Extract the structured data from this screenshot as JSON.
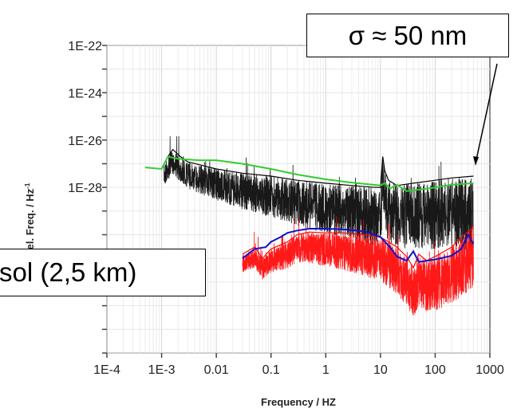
{
  "chart_data": {
    "type": "line",
    "xlabel": "Frequency / HZ",
    "ylabel_fragment": "of rel. Freq. / Hz",
    "ylabel_superscript": "-1",
    "x_scale": "log",
    "y_scale": "log",
    "xlim": [
      0.0001,
      1000
    ],
    "ylim": [
      1e-35,
      1e-22
    ],
    "x_ticks": [
      {
        "value": 0.0001,
        "label": "1E-4"
      },
      {
        "value": 0.001,
        "label": "1E-3"
      },
      {
        "value": 0.01,
        "label": "0.01"
      },
      {
        "value": 0.1,
        "label": "0.1"
      },
      {
        "value": 1,
        "label": "1"
      },
      {
        "value": 10,
        "label": "10"
      },
      {
        "value": 100,
        "label": "100"
      },
      {
        "value": 1000,
        "label": "1000"
      }
    ],
    "y_ticks": [
      {
        "value": 1e-22,
        "label": "1E-22"
      },
      {
        "value": 1e-24,
        "label": "1E-24"
      },
      {
        "value": 1e-26,
        "label": "1E-26"
      },
      {
        "value": 1e-28,
        "label": "1E-28"
      }
    ],
    "grid": true,
    "series": [
      {
        "color": "#000000",
        "x": [
          0.0011,
          0.0013,
          0.0016,
          0.0022,
          0.003,
          0.005,
          0.01,
          0.03,
          0.1,
          0.3,
          1,
          3,
          8,
          10,
          11,
          12,
          14,
          20,
          40,
          100,
          200,
          500
        ],
        "y": [
          9e-28,
          2e-27,
          4e-27,
          2e-27,
          1.2e-27,
          9e-28,
          6e-28,
          4e-28,
          3e-28,
          2e-28,
          1.5e-28,
          1.2e-28,
          1e-28,
          1e-28,
          2e-27,
          5e-28,
          2e-28,
          1.2e-28,
          1.5e-28,
          2e-28,
          2.5e-28,
          3e-28
        ]
      },
      {
        "color": "#33cc33",
        "x": [
          0.0005,
          0.001,
          0.0013,
          0.002,
          0.005,
          0.01,
          0.03,
          0.1,
          0.3,
          1,
          3,
          10,
          12,
          15,
          20,
          30,
          50,
          100,
          200,
          500
        ],
        "y": [
          7e-28,
          6e-28,
          2e-27,
          1.6e-27,
          1.4e-27,
          1.4e-27,
          1e-27,
          6e-28,
          3.5e-28,
          2.2e-28,
          1.6e-28,
          1.2e-28,
          1.5e-28,
          9e-29,
          1.3e-28,
          7e-29,
          8e-29,
          1e-28,
          1.3e-28,
          1.5e-28
        ]
      },
      {
        "color": "#ff0000",
        "x": [
          0.03,
          0.05,
          0.07,
          0.1,
          0.2,
          0.3,
          0.5,
          1,
          2,
          5,
          10,
          20,
          30,
          40,
          50,
          70,
          100,
          200,
          300,
          500
        ],
        "y": [
          1.5e-31,
          3e-31,
          1e-31,
          2.5e-31,
          5e-31,
          1e-30,
          1.3e-30,
          1.2e-30,
          1.2e-30,
          1e-30,
          8e-31,
          3e-31,
          1.2e-31,
          4e-32,
          1.5e-31,
          8e-32,
          1.2e-31,
          3e-31,
          8e-31,
          2e-30
        ]
      },
      {
        "color": "#1010cc",
        "x": [
          0.03,
          0.05,
          0.08,
          0.1,
          0.15,
          0.2,
          0.3,
          0.5,
          1,
          2,
          5,
          10,
          15,
          20,
          30,
          40,
          50,
          100,
          200,
          300,
          400,
          500
        ],
        "y": [
          1e-31,
          2.5e-31,
          3e-31,
          5e-31,
          8e-31,
          1.2e-30,
          1.5e-30,
          1.8e-30,
          1.8e-30,
          1.7e-30,
          1.4e-30,
          8e-31,
          3e-31,
          1.2e-31,
          8e-32,
          2e-31,
          7e-32,
          9e-32,
          1.3e-31,
          2.5e-31,
          1e-30,
          4e-31
        ]
      }
    ],
    "annotations": [
      {
        "text": "σ ≈ 50 nm",
        "arrow_to": {
          "x": 500,
          "y": 8e-27
        }
      },
      {
        "text": "sol (2,5 km)"
      }
    ]
  }
}
